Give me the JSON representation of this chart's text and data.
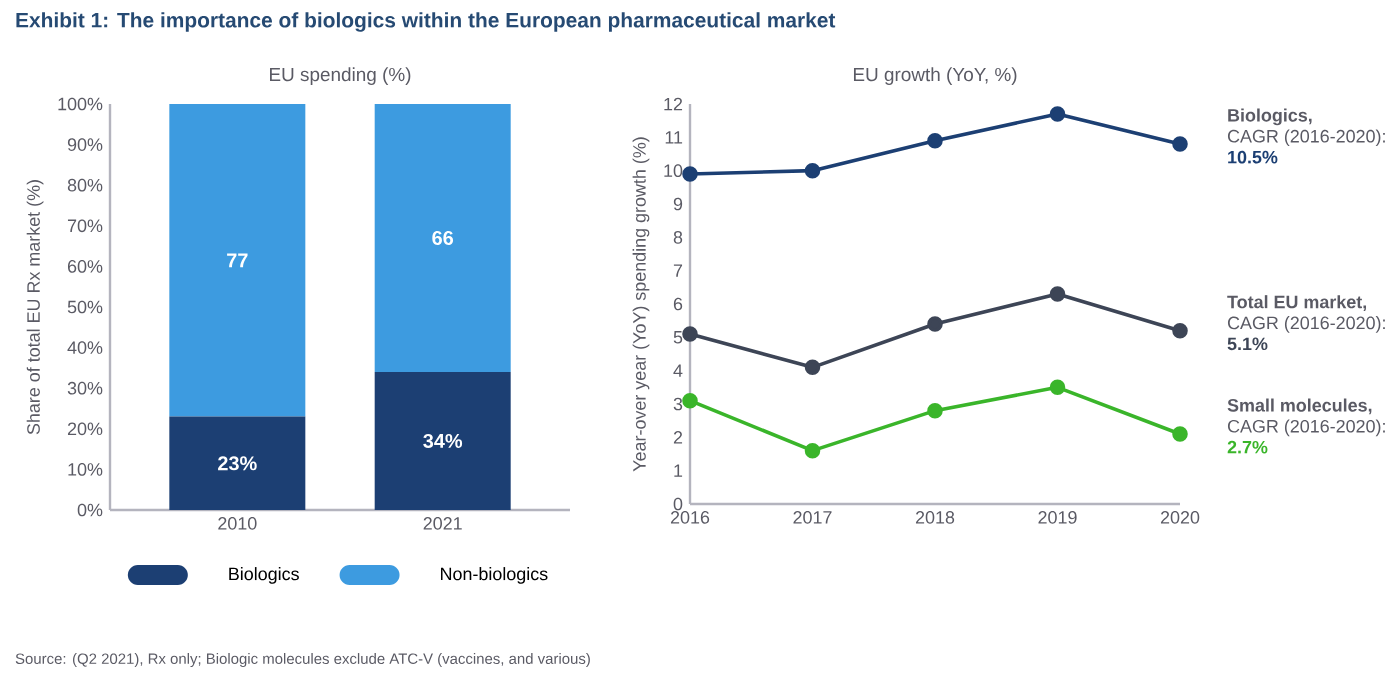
{
  "chart_data": [
    {
      "type": "bar",
      "title": "Exhibit 1: The importance of biologics within the European pharmaceutical market",
      "subtitle": "EU spending (%)",
      "ylabel": "Share of total EU Rx market (%)",
      "stacked": true,
      "categories": [
        "2010",
        "2021"
      ],
      "series": [
        {
          "name": "Biologics",
          "color": "#1c3f73",
          "values": [
            23,
            34
          ],
          "value_labels": [
            "23%",
            "34%"
          ]
        },
        {
          "name": "Non-biologics",
          "color": "#3d9be0",
          "values": [
            77,
            66
          ],
          "value_labels": [
            "77",
            "66"
          ]
        }
      ],
      "ylim": [
        0,
        100
      ],
      "yticks": [
        {
          "value": 0,
          "label": "0%"
        },
        {
          "value": 10,
          "label": "10%"
        },
        {
          "value": 20,
          "label": "20%"
        },
        {
          "value": 30,
          "label": "30%"
        },
        {
          "value": 40,
          "label": "40%"
        },
        {
          "value": 50,
          "label": "50%"
        },
        {
          "value": 60,
          "label": "60%"
        },
        {
          "value": 70,
          "label": "70%"
        },
        {
          "value": 80,
          "label": "80%"
        },
        {
          "value": 90,
          "label": "90%"
        },
        {
          "value": 100,
          "label": "100%"
        }
      ],
      "legend": "bottom",
      "annotations": [
        "Source: (Q2 2021), Rx only; Biologic molecules exclude ATC-V (vaccines, and various)"
      ]
    },
    {
      "type": "line",
      "title": "EU growth (YoY, %)",
      "ylabel": "Year-over year (YoY) spending growth (%)",
      "x": [
        2016,
        2017,
        2018,
        2019,
        2020
      ],
      "series": [
        {
          "name": "Biologics,",
          "color": "#1c3f73",
          "values": [
            9.9,
            10.0,
            10.9,
            11.7,
            10.8
          ]
        },
        {
          "name": "Total EU market,",
          "color": "#3d4556",
          "values": [
            5.1,
            4.1,
            5.4,
            6.3,
            5.2
          ]
        },
        {
          "name": "Small molecules,",
          "color": "#3ab52a",
          "values": [
            3.1,
            1.6,
            2.8,
            3.5,
            2.1
          ]
        }
      ],
      "xlim": [
        2016,
        2020
      ],
      "xticks": [
        2016,
        2017,
        2018,
        2019,
        2020
      ],
      "ylim": [
        0,
        12
      ],
      "yticks": [
        0,
        1,
        2,
        3,
        4,
        5,
        6,
        7,
        8,
        9,
        10,
        11,
        12
      ],
      "marker": "circle",
      "annotations": [
        "CAGR (2016-2020):",
        "10.5%",
        "CAGR (2016-2020):",
        "5.1%",
        "CAGR (2016-2020):",
        "2.7%"
      ]
    }
  ]
}
